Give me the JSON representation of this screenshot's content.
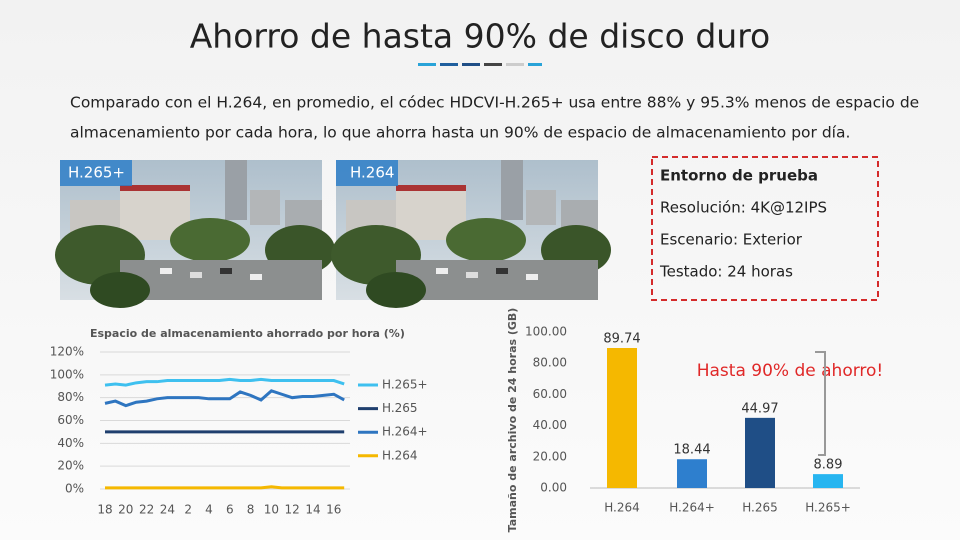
{
  "slide": {
    "title": "Ahorro de hasta 90% de disco duro",
    "paragraph": [
      "Comparado con el H.264, en promedio, el códec HDCVI-H.265+ usa entre 88% y 95.3% menos de espacio de",
      "almacenamiento por cada hora, lo que ahorra hasta un 90% de espacio de almacenamiento por día."
    ],
    "images": [
      "H.265+",
      "H.264"
    ],
    "test_box": {
      "title": "Entorno de prueba",
      "lines": [
        "Resolución: 4K@12IPS",
        "Escenario: Exterior",
        "Testado: 24 horas"
      ]
    }
  },
  "chart_data": [
    {
      "type": "line",
      "title": "Espacio de almacenamiento ahorrado por hora (%)",
      "categories": [
        "18",
        null,
        "20",
        null,
        "22",
        null,
        "24",
        null,
        "2",
        null,
        "4",
        null,
        "6",
        null,
        "8",
        null,
        "10",
        null,
        "12",
        null,
        "14",
        null,
        "16",
        null
      ],
      "ylim": [
        0,
        120
      ],
      "yticks": [
        {
          "value": 0,
          "label": "0%"
        },
        {
          "value": 20,
          "label": "20%"
        },
        {
          "value": 40,
          "label": "40%"
        },
        {
          "value": 60,
          "label": "60%"
        },
        {
          "value": 80,
          "label": "80%"
        },
        {
          "value": 100,
          "label": "100%"
        },
        {
          "value": 120,
          "label": "120%"
        }
      ],
      "grid": true,
      "legend": "right",
      "series": [
        {
          "name": "H.265+",
          "color": "#3ec0ef",
          "values": [
            91,
            92,
            91,
            93,
            94,
            94,
            95,
            95,
            95,
            95,
            95,
            95,
            96,
            95,
            95,
            96,
            95,
            95,
            95,
            95,
            95,
            95,
            95,
            92
          ]
        },
        {
          "name": "H.265",
          "color": "#1f3f6e",
          "values": [
            50,
            50,
            50,
            50,
            50,
            50,
            50,
            50,
            50,
            50,
            50,
            50,
            50,
            50,
            50,
            50,
            50,
            50,
            50,
            50,
            50,
            50,
            50,
            50
          ]
        },
        {
          "name": "H.264+",
          "color": "#2e75c0",
          "values": [
            75,
            77,
            73,
            76,
            77,
            79,
            80,
            80,
            80,
            80,
            79,
            79,
            79,
            85,
            82,
            78,
            86,
            83,
            80,
            81,
            81,
            82,
            83,
            78
          ]
        },
        {
          "name": "H.264",
          "color": "#f5b800",
          "values": [
            1,
            1,
            1,
            1,
            1,
            1,
            1,
            1,
            1,
            1,
            1,
            1,
            1,
            1,
            1,
            1,
            2,
            1,
            1,
            1,
            1,
            1,
            1,
            1
          ]
        }
      ]
    },
    {
      "type": "bar",
      "y_label": "Tamaño de archivo de 24 horas (GB)",
      "annotation": "Hasta 90% de ahorro!",
      "categories": [
        "H.264",
        "H.264+",
        "H.265",
        "H.265+"
      ],
      "values": [
        89.74,
        18.44,
        44.97,
        8.89
      ],
      "colors": [
        "#f5b800",
        "#2e7fce",
        "#1f4e86",
        "#27b5f0"
      ],
      "ylim": [
        0,
        100
      ],
      "yticks": [
        {
          "value": 0,
          "label": "0.00"
        },
        {
          "value": 20,
          "label": "20.00"
        },
        {
          "value": 40,
          "label": "40.00"
        },
        {
          "value": 60,
          "label": "60.00"
        },
        {
          "value": 80,
          "label": "80.00"
        },
        {
          "value": 100,
          "label": "100.00"
        }
      ]
    }
  ]
}
